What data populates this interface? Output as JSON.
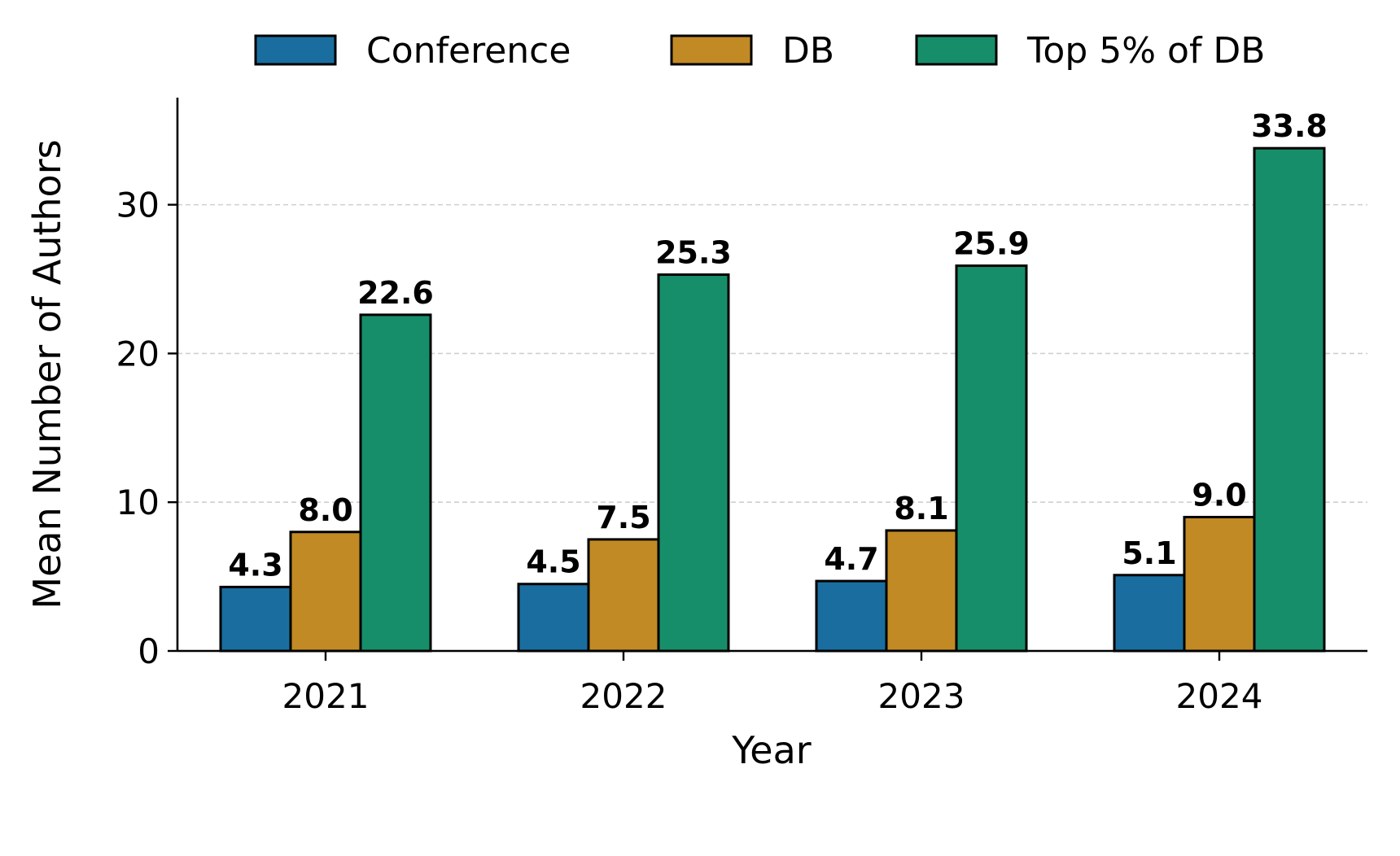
{
  "chart_data": {
    "type": "bar",
    "title": "",
    "xlabel": "Year",
    "ylabel": "Mean Number of Authors",
    "categories": [
      "2021",
      "2022",
      "2023",
      "2024"
    ],
    "series": [
      {
        "name": "Conference",
        "color": "#1a6e9f",
        "values": [
          4.3,
          4.5,
          4.7,
          5.1
        ],
        "labels": [
          "4.3",
          "4.5",
          "4.7",
          "5.1"
        ]
      },
      {
        "name": "DB",
        "color": "#c28a24",
        "values": [
          8.0,
          7.5,
          8.1,
          9.0
        ],
        "labels": [
          "8.0",
          "7.5",
          "8.1",
          "9.0"
        ]
      },
      {
        "name": "Top 5% of DB",
        "color": "#178e6a",
        "values": [
          22.6,
          25.3,
          25.9,
          33.8
        ],
        "labels": [
          "22.6",
          "25.3",
          "25.9",
          "33.8"
        ]
      }
    ],
    "yticks": [
      0,
      10,
      20,
      30
    ],
    "ytick_labels": [
      "0",
      "10",
      "20",
      "30"
    ],
    "ylim": [
      0,
      37.2
    ],
    "grid": "y, dashed",
    "legend_position": "top-center"
  }
}
